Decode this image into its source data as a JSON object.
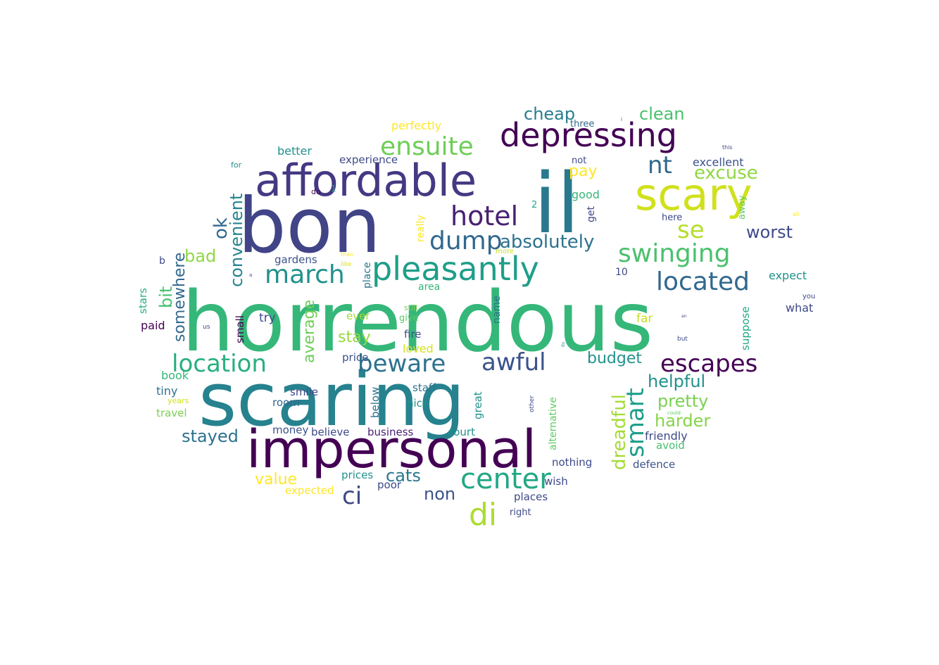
{
  "words": [
    {
      "text": "horrendous",
      "color": "#35b779"
    },
    {
      "text": "bon",
      "color": "#414487"
    },
    {
      "text": "scaring",
      "color": "#26828e"
    },
    {
      "text": "il",
      "color": "#2a788e"
    },
    {
      "text": "impersonal",
      "color": "#440154"
    },
    {
      "text": "affordable",
      "color": "#443983"
    },
    {
      "text": "scary",
      "color": "#d0e11c"
    },
    {
      "text": "depressing",
      "color": "#440154"
    },
    {
      "text": "pleasantly",
      "color": "#1f9e89"
    },
    {
      "text": "ensuite",
      "color": "#6ece58"
    },
    {
      "text": "hotel",
      "color": "#482173"
    },
    {
      "text": "swinging",
      "color": "#4ac16d"
    },
    {
      "text": "dump",
      "color": "#31688e"
    },
    {
      "text": "march",
      "color": "#21918c"
    },
    {
      "text": "located",
      "color": "#31688e"
    },
    {
      "text": "location",
      "color": "#29af7f"
    },
    {
      "text": "beware",
      "color": "#2c728e"
    },
    {
      "text": "awful",
      "color": "#3b528b"
    },
    {
      "text": "escapes",
      "color": "#440154"
    },
    {
      "text": "center",
      "color": "#22a884"
    },
    {
      "text": "di",
      "color": "#addc30"
    },
    {
      "text": "ci",
      "color": "#3e4989"
    },
    {
      "text": "nt",
      "color": "#31688e"
    },
    {
      "text": "se",
      "color": "#b5de2b"
    },
    {
      "text": "absolutely",
      "color": "#2c728e"
    },
    {
      "text": "smart",
      "color": "#1f9e89"
    },
    {
      "text": "dreadful",
      "color": "#a5db36"
    },
    {
      "text": "worst",
      "color": "#3e4989"
    },
    {
      "text": "excuse",
      "color": "#90d743"
    },
    {
      "text": "clean",
      "color": "#4ac16d"
    },
    {
      "text": "cheap",
      "color": "#287d8e"
    },
    {
      "text": "pay",
      "color": "#fde725"
    },
    {
      "text": "convenient",
      "color": "#25858e"
    },
    {
      "text": "ok",
      "color": "#31688e"
    },
    {
      "text": "bad",
      "color": "#90d743"
    },
    {
      "text": "bit",
      "color": "#46c06f"
    },
    {
      "text": "somewhere",
      "color": "#31688e"
    },
    {
      "text": "average",
      "color": "#6ece58"
    },
    {
      "text": "stay",
      "color": "#95d840"
    },
    {
      "text": "budget",
      "color": "#21918c"
    },
    {
      "text": "helpful",
      "color": "#21918c"
    },
    {
      "text": "pretty",
      "color": "#7ad151"
    },
    {
      "text": "harder",
      "color": "#86d549"
    },
    {
      "text": "stayed",
      "color": "#2c728e"
    },
    {
      "text": "cats",
      "color": "#2a788e"
    },
    {
      "text": "non",
      "color": "#3b528b"
    },
    {
      "text": "value",
      "color": "#fde725"
    },
    {
      "text": "perfectly",
      "color": "#fde725"
    },
    {
      "text": "better",
      "color": "#21918c"
    },
    {
      "text": "experience",
      "color": "#3e4989"
    },
    {
      "text": "excellent",
      "color": "#3b528b"
    },
    {
      "text": "three",
      "color": "#31688e"
    },
    {
      "text": "not",
      "color": "#3e4989"
    },
    {
      "text": "good",
      "color": "#35b779"
    },
    {
      "text": "get",
      "color": "#414487"
    },
    {
      "text": "really",
      "color": "#fde725"
    },
    {
      "text": "away",
      "color": "#5ec962"
    },
    {
      "text": "here",
      "color": "#3e4989"
    },
    {
      "text": "expect",
      "color": "#21918c"
    },
    {
      "text": "what",
      "color": "#3e4989"
    },
    {
      "text": "suppose",
      "color": "#22a884"
    },
    {
      "text": "far",
      "color": "#c8e020"
    },
    {
      "text": "fire",
      "color": "#3b528b"
    },
    {
      "text": "ever",
      "color": "#a0da39"
    },
    {
      "text": "give",
      "color": "#5ec962"
    },
    {
      "text": "still",
      "color": "#7ad151"
    },
    {
      "text": "loved",
      "color": "#d8e219"
    },
    {
      "text": "price",
      "color": "#3b528b"
    },
    {
      "text": "gardens",
      "color": "#3b528b"
    },
    {
      "text": "place",
      "color": "#2c728e"
    },
    {
      "text": "area",
      "color": "#35b779"
    },
    {
      "text": "try",
      "color": "#3e4989"
    },
    {
      "text": "small",
      "color": "#440154"
    },
    {
      "text": "paid",
      "color": "#440154"
    },
    {
      "text": "stars",
      "color": "#29af7f"
    },
    {
      "text": "book",
      "color": "#35b779"
    },
    {
      "text": "tiny",
      "color": "#2c728e"
    },
    {
      "text": "travel",
      "color": "#7ad151"
    },
    {
      "text": "years",
      "color": "#d0e11c"
    },
    {
      "text": "smile",
      "color": "#3e4989"
    },
    {
      "text": "room",
      "color": "#31688e"
    },
    {
      "text": "below",
      "color": "#2c728e"
    },
    {
      "text": "staff",
      "color": "#2c728e"
    },
    {
      "text": "nice",
      "color": "#21918c"
    },
    {
      "text": "great",
      "color": "#21918c"
    },
    {
      "text": "alternative",
      "color": "#5ec962"
    },
    {
      "text": "money",
      "color": "#3b528b"
    },
    {
      "text": "believe",
      "color": "#3e4989"
    },
    {
      "text": "business",
      "color": "#482475"
    },
    {
      "text": "court",
      "color": "#21918c"
    },
    {
      "text": "friendly",
      "color": "#3e4989"
    },
    {
      "text": "avoid",
      "color": "#4ac16d"
    },
    {
      "text": "nothing",
      "color": "#3e4989"
    },
    {
      "text": "defence",
      "color": "#3b528b"
    },
    {
      "text": "prices",
      "color": "#21918c"
    },
    {
      "text": "poor",
      "color": "#3e4989"
    },
    {
      "text": "wish",
      "color": "#3e4989"
    },
    {
      "text": "places",
      "color": "#3e4989"
    },
    {
      "text": "right",
      "color": "#3e4989"
    },
    {
      "text": "expected",
      "color": "#fde725"
    },
    {
      "text": "name",
      "color": "#2c728e"
    },
    {
      "text": "2",
      "color": "#22a884"
    },
    {
      "text": "10",
      "color": "#3e4989"
    },
    {
      "text": "1",
      "color": "#22a884"
    },
    {
      "text": "do",
      "color": "#440154"
    },
    {
      "text": "b",
      "color": "#3e4989"
    },
    {
      "text": "for",
      "color": "#21918c"
    },
    {
      "text": "more",
      "color": "#c8e020"
    },
    {
      "text": "than",
      "color": "#fde725"
    },
    {
      "text": "like",
      "color": "#dde318"
    },
    {
      "text": "a",
      "color": "#3e4989"
    },
    {
      "text": "us",
      "color": "#3e4989"
    },
    {
      "text": "you",
      "color": "#3e4989"
    },
    {
      "text": "an",
      "color": "#3e4989"
    },
    {
      "text": "but",
      "color": "#3e4989"
    },
    {
      "text": "could",
      "color": "#5ec962"
    },
    {
      "text": "all",
      "color": "#fde725"
    },
    {
      "text": "this",
      "color": "#3e4989"
    },
    {
      "text": "i",
      "color": "#3e4989"
    },
    {
      "text": "its",
      "color": "#21918c"
    },
    {
      "text": "other",
      "color": "#3e4989"
    }
  ]
}
